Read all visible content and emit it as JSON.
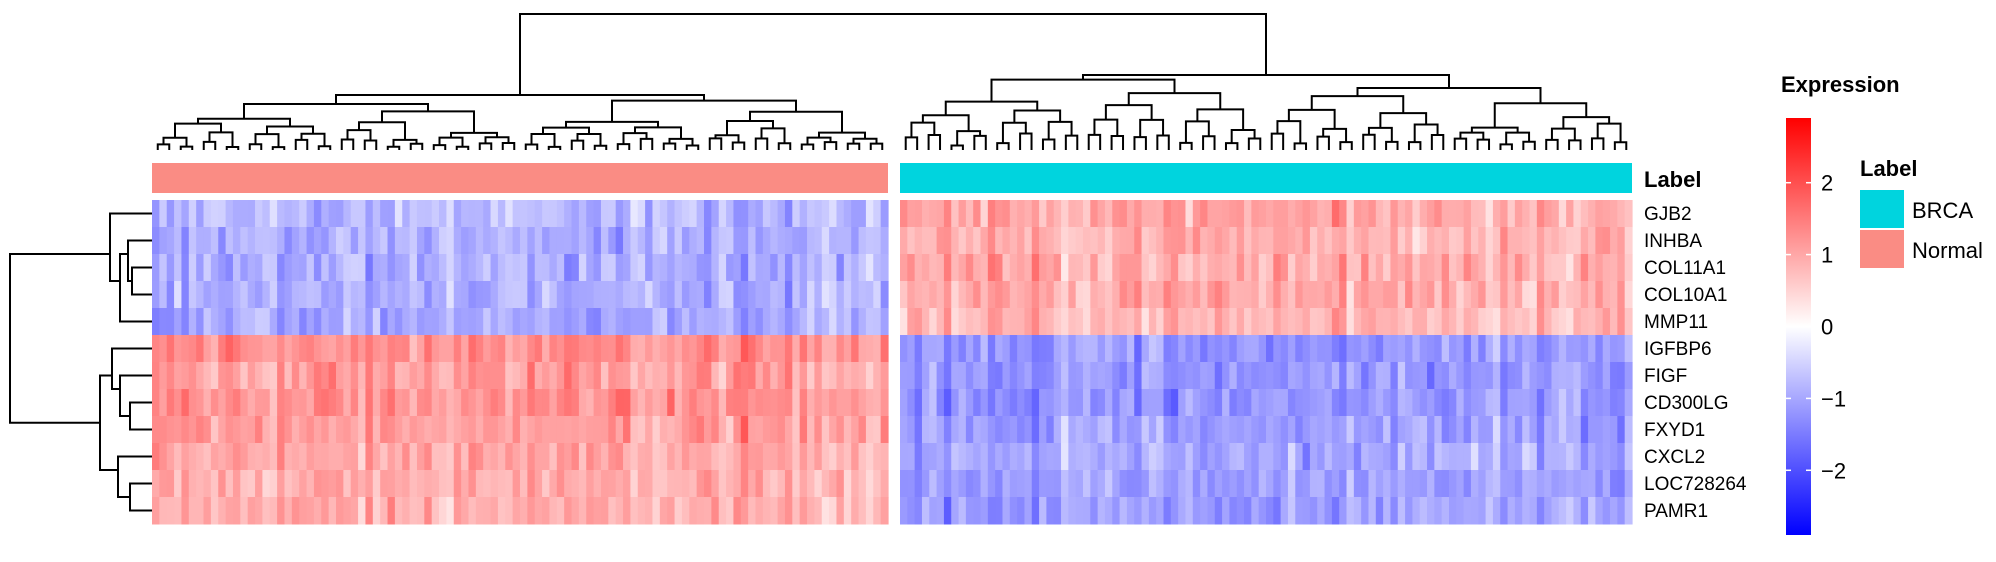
{
  "chart_data": {
    "type": "heatmap",
    "title": "",
    "genes": [
      "GJB2",
      "INHBA",
      "COL11A1",
      "COL10A1",
      "MMP11",
      "IGFBP6",
      "FIGF",
      "CD300LG",
      "FXYD1",
      "CXCL2",
      "LOC728264",
      "PAMR1"
    ],
    "column_groups": [
      {
        "name": "Normal",
        "color": "#FA8C84",
        "n_samples": 100,
        "mean_expression": [
          -0.8,
          -0.9,
          -0.9,
          -0.9,
          -1.0,
          1.2,
          1.1,
          1.2,
          1.1,
          1.0,
          0.9,
          0.9
        ]
      },
      {
        "name": "BRCA",
        "color": "#00D4DE",
        "n_samples": 100,
        "mean_expression": [
          1.0,
          0.9,
          1.0,
          1.0,
          0.8,
          -1.2,
          -1.2,
          -1.2,
          -1.1,
          -1.0,
          -1.1,
          -1.1
        ]
      }
    ],
    "annotation": {
      "title": "Label",
      "entries": [
        "BRCA",
        "Normal"
      ],
      "colors": [
        "#00D4DE",
        "#FA8C84"
      ]
    },
    "color_scale": {
      "title": "Expression",
      "ticks": [
        2,
        1,
        0,
        -1,
        -2
      ],
      "range": [
        -2.9,
        2.9
      ],
      "low": "#0000FF",
      "mid": "#FFFFFF",
      "high": "#FF0000"
    },
    "row_clusters": [
      [
        "GJB2",
        "INHBA",
        "COL11A1",
        "COL10A1",
        "MMP11"
      ],
      [
        "IGFBP6",
        "FIGF",
        "CD300LG",
        "FXYD1",
        "CXCL2",
        "LOC728264",
        "PAMR1"
      ]
    ],
    "legend_position": "right"
  }
}
